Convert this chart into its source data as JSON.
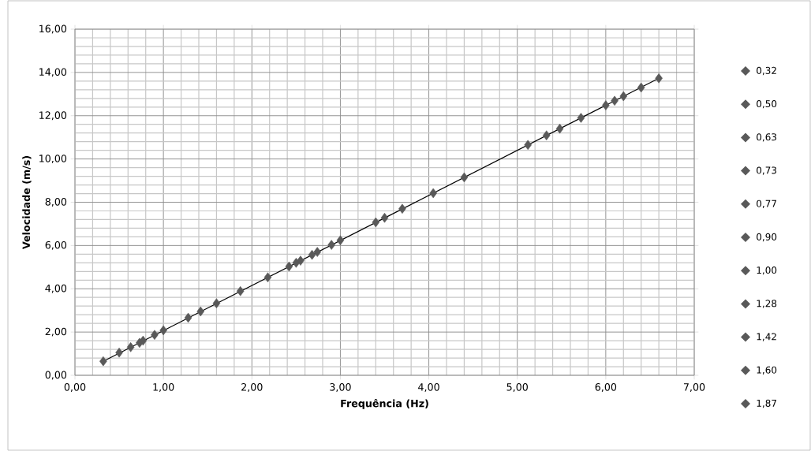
{
  "chart_data": {
    "type": "scatter",
    "xlabel": "Frequência  (Hz)",
    "ylabel": "Velocidade  (m/s)",
    "xlim": [
      0,
      7
    ],
    "ylim": [
      0,
      16
    ],
    "xticks": [
      {
        "value": 0,
        "label": "0,00"
      },
      {
        "value": 1,
        "label": "1,00"
      },
      {
        "value": 2,
        "label": "2,00"
      },
      {
        "value": 3,
        "label": "3,00"
      },
      {
        "value": 4,
        "label": "4,00"
      },
      {
        "value": 5,
        "label": "5,00"
      },
      {
        "value": 6,
        "label": "6,00"
      },
      {
        "value": 7,
        "label": "7,00"
      }
    ],
    "yticks": [
      {
        "value": 0,
        "label": "0,00"
      },
      {
        "value": 2,
        "label": "2,00"
      },
      {
        "value": 4,
        "label": "4,00"
      },
      {
        "value": 6,
        "label": "6,00"
      },
      {
        "value": 8,
        "label": "8,00"
      },
      {
        "value": 10,
        "label": "10,00"
      },
      {
        "value": 12,
        "label": "12,00"
      },
      {
        "value": 14,
        "label": "14,00"
      },
      {
        "value": 16,
        "label": "16,00"
      }
    ],
    "grid": true,
    "legend": "right",
    "marker": "diamond",
    "series": [
      {
        "type": "line",
        "marker": "none",
        "color": "#000000",
        "x": [
          0.32,
          6.6
        ],
        "values": [
          0.65,
          13.73
        ]
      },
      {
        "name": "0,32",
        "color": "#595959",
        "x": [
          0.32
        ],
        "values": [
          0.65
        ]
      },
      {
        "name": "0,50",
        "color": "#595959",
        "x": [
          0.5
        ],
        "values": [
          1.05
        ]
      },
      {
        "name": "0,63",
        "color": "#595959",
        "x": [
          0.63
        ],
        "values": [
          1.3
        ]
      },
      {
        "name": "0,73",
        "color": "#595959",
        "x": [
          0.73
        ],
        "values": [
          1.5
        ]
      },
      {
        "name": "0,77",
        "color": "#595959",
        "x": [
          0.77
        ],
        "values": [
          1.6
        ]
      },
      {
        "name": "0,90",
        "color": "#595959",
        "x": [
          0.9
        ],
        "values": [
          1.87
        ]
      },
      {
        "name": "1,00",
        "color": "#595959",
        "x": [
          1.0
        ],
        "values": [
          2.08
        ]
      },
      {
        "name": "1,28",
        "color": "#595959",
        "x": [
          1.28
        ],
        "values": [
          2.66
        ]
      },
      {
        "name": "1,42",
        "color": "#595959",
        "x": [
          1.42
        ],
        "values": [
          2.95
        ]
      },
      {
        "name": "1,60",
        "color": "#595959",
        "x": [
          1.6
        ],
        "values": [
          3.33
        ]
      },
      {
        "name": "1,87",
        "color": "#595959",
        "x": [
          1.87
        ],
        "values": [
          3.89
        ]
      },
      {
        "color": "#595959",
        "x": [
          2.18,
          2.42,
          2.5,
          2.55,
          2.68,
          2.74,
          2.9,
          3.0,
          3.4,
          3.5,
          3.7,
          4.05,
          4.4,
          5.12,
          5.33,
          5.48,
          5.72,
          6.0,
          6.1,
          6.2,
          6.4,
          6.6
        ],
        "values": [
          4.53,
          5.03,
          5.2,
          5.3,
          5.57,
          5.7,
          6.03,
          6.24,
          7.07,
          7.28,
          7.7,
          8.42,
          9.15,
          10.65,
          11.09,
          11.4,
          11.9,
          12.48,
          12.69,
          12.9,
          13.3,
          13.73
        ]
      }
    ]
  }
}
